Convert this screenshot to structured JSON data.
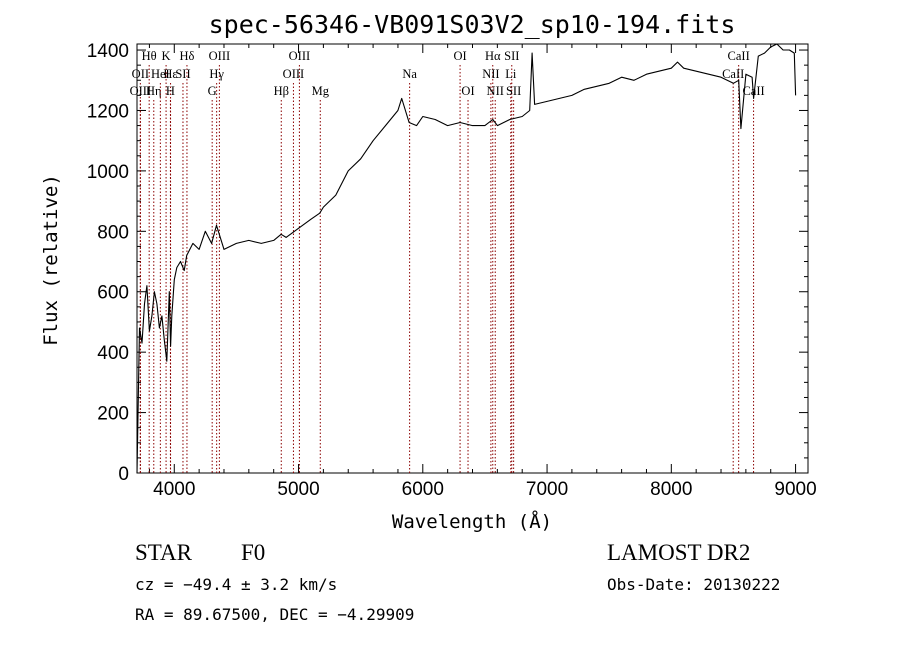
{
  "chart_data": {
    "type": "line",
    "title": "spec-56346-VB091S03V2_sp10-194.fits",
    "xlabel": "Wavelength (Å)",
    "ylabel": "Flux (relative)",
    "xlim": [
      3700,
      9100
    ],
    "ylim": [
      0,
      1420
    ],
    "x_ticks": [
      4000,
      5000,
      6000,
      7000,
      8000,
      9000
    ],
    "y_ticks": [
      0,
      200,
      400,
      600,
      800,
      1000,
      1200,
      1400
    ],
    "grid": false,
    "line_color": "#000000",
    "marker_color": "#8b0000",
    "series": [
      {
        "x": [
          3700,
          3720,
          3740,
          3760,
          3780,
          3800,
          3820,
          3840,
          3860,
          3880,
          3900,
          3920,
          3940,
          3960,
          3970,
          3980,
          4000,
          4020,
          4050,
          4080,
          4100,
          4150,
          4200,
          4250,
          4300,
          4340,
          4400,
          4500,
          4600,
          4700,
          4800,
          4860,
          4900,
          5000,
          5100,
          5170,
          5200,
          5300,
          5400,
          5500,
          5600,
          5700,
          5800,
          5830,
          5890,
          5950,
          6000,
          6100,
          6200,
          6300,
          6400,
          6500,
          6563,
          6600,
          6700,
          6800,
          6860,
          6880,
          6900,
          7000,
          7100,
          7200,
          7300,
          7400,
          7500,
          7600,
          7700,
          7800,
          7900,
          8000,
          8050,
          8100,
          8200,
          8300,
          8400,
          8500,
          8542,
          8560,
          8600,
          8650,
          8662,
          8700,
          8750,
          8800,
          8850,
          8900,
          8950,
          8990,
          9000
        ],
        "values": [
          0,
          480,
          430,
          560,
          620,
          470,
          520,
          600,
          560,
          480,
          520,
          440,
          370,
          600,
          420,
          520,
          640,
          680,
          700,
          670,
          720,
          760,
          740,
          800,
          760,
          820,
          740,
          760,
          770,
          760,
          770,
          790,
          780,
          810,
          840,
          860,
          880,
          920,
          1000,
          1040,
          1100,
          1150,
          1200,
          1240,
          1160,
          1150,
          1180,
          1170,
          1150,
          1160,
          1150,
          1150,
          1170,
          1150,
          1170,
          1180,
          1200,
          1390,
          1220,
          1230,
          1240,
          1250,
          1270,
          1280,
          1290,
          1310,
          1300,
          1320,
          1330,
          1340,
          1360,
          1340,
          1330,
          1320,
          1310,
          1290,
          1300,
          1140,
          1320,
          1310,
          1240,
          1380,
          1390,
          1410,
          1420,
          1400,
          1400,
          1390,
          1250
        ]
      }
    ],
    "spectral_lines": [
      {
        "name": "Hθ",
        "wavelength": 3798,
        "row": 1
      },
      {
        "name": "OII",
        "wavelength": 3727,
        "row": 2
      },
      {
        "name": "OIII",
        "wavelength": 3727,
        "row": 3
      },
      {
        "name": "Hε",
        "wavelength": 3970,
        "row": 2
      },
      {
        "name": "Hη",
        "wavelength": 3835,
        "row": 3
      },
      {
        "name": "K",
        "wavelength": 3934,
        "row": 1
      },
      {
        "name": "HeI",
        "wavelength": 3888,
        "row": 2
      },
      {
        "name": "H",
        "wavelength": 3969,
        "row": 3
      },
      {
        "name": "Hδ",
        "wavelength": 4102,
        "row": 1
      },
      {
        "name": "SII",
        "wavelength": 4070,
        "row": 2
      },
      {
        "name": "OIII",
        "wavelength": 4363,
        "row": 1
      },
      {
        "name": "Hγ",
        "wavelength": 4341,
        "row": 2
      },
      {
        "name": "G",
        "wavelength": 4305,
        "row": 3
      },
      {
        "name": "OIII",
        "wavelength": 5007,
        "row": 1
      },
      {
        "name": "OIII",
        "wavelength": 4959,
        "row": 2
      },
      {
        "name": "Hβ",
        "wavelength": 4861,
        "row": 3
      },
      {
        "name": "Mg",
        "wavelength": 5175,
        "row": 3
      },
      {
        "name": "Na",
        "wavelength": 5894,
        "row": 2
      },
      {
        "name": "OI",
        "wavelength": 6300,
        "row": 1
      },
      {
        "name": "OI",
        "wavelength": 6364,
        "row": 3
      },
      {
        "name": "Hα",
        "wavelength": 6563,
        "row": 1
      },
      {
        "name": "SII",
        "wavelength": 6716,
        "row": 1
      },
      {
        "name": "NII",
        "wavelength": 6548,
        "row": 2
      },
      {
        "name": "Li",
        "wavelength": 6708,
        "row": 2
      },
      {
        "name": "NII",
        "wavelength": 6583,
        "row": 3
      },
      {
        "name": "SII",
        "wavelength": 6731,
        "row": 3
      },
      {
        "name": "CaII",
        "wavelength": 8542,
        "row": 1
      },
      {
        "name": "CaII",
        "wavelength": 8498,
        "row": 2
      },
      {
        "name": "CaII",
        "wavelength": 8662,
        "row": 3
      }
    ]
  },
  "info": {
    "class": "STAR",
    "subclass": "F0",
    "survey": "LAMOST DR2",
    "cz": "cz = −49.4 ± 3.2 km/s",
    "obs_date": "Obs-Date: 20130222",
    "coords": "RA =  89.67500, DEC =  −4.29909"
  }
}
